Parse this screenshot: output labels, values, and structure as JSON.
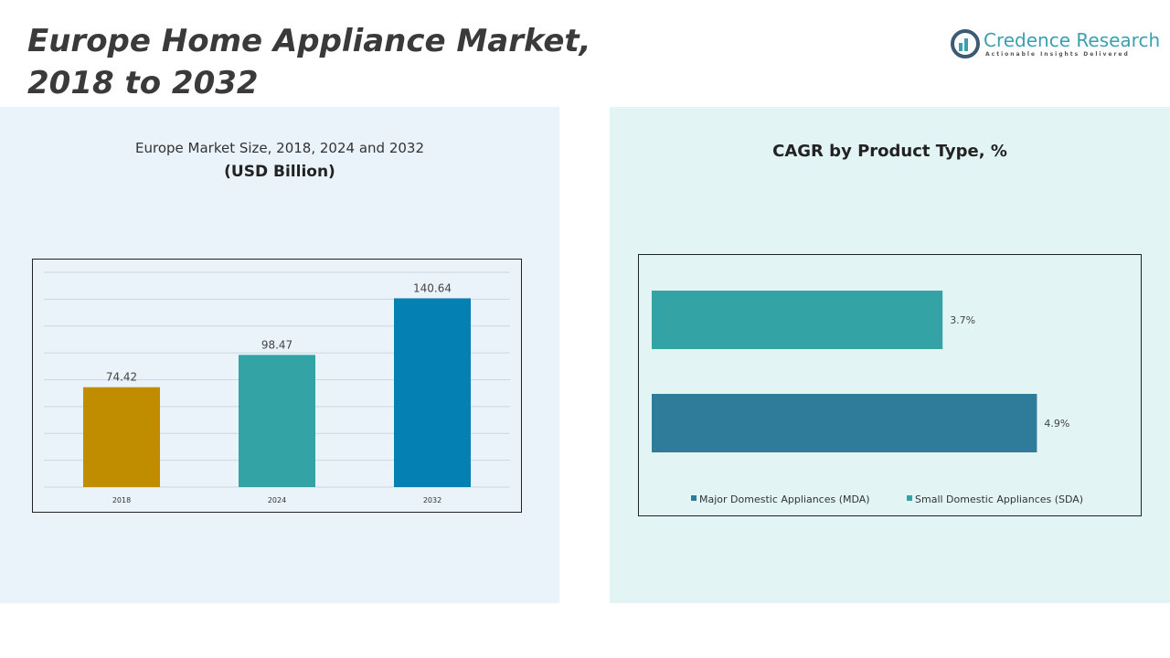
{
  "header": {
    "title_line1": "Europe Home Appliance Market,",
    "title_line2": "2018 to 2032"
  },
  "logo": {
    "name": "Credence Research",
    "tagline": "Actionable Insights Delivered"
  },
  "chart_data": [
    {
      "type": "bar",
      "title": "Europe Market Size, 2018, 2024 and 2032",
      "subtitle": "(USD Billion)",
      "categories": [
        "2018",
        "2024",
        "2032"
      ],
      "values": [
        74.42,
        98.47,
        140.64
      ],
      "colors": [
        "#c08c00",
        "#33a3a6",
        "#0480b2"
      ],
      "ylim": [
        0,
        160
      ],
      "grid": true
    },
    {
      "type": "bar",
      "orientation": "horizontal",
      "title": "CAGR by Product Type, %",
      "categories": [
        "Small Domestic Appliances (SDA)",
        "Major Domestic Appliances (MDA)"
      ],
      "values": [
        3.7,
        4.9
      ],
      "labels": [
        "3.7%",
        "4.9%"
      ],
      "colors": [
        "#33a3a6",
        "#2e7b9a"
      ],
      "xlim": [
        0,
        6
      ],
      "legend": "bottom",
      "grid": false
    }
  ]
}
